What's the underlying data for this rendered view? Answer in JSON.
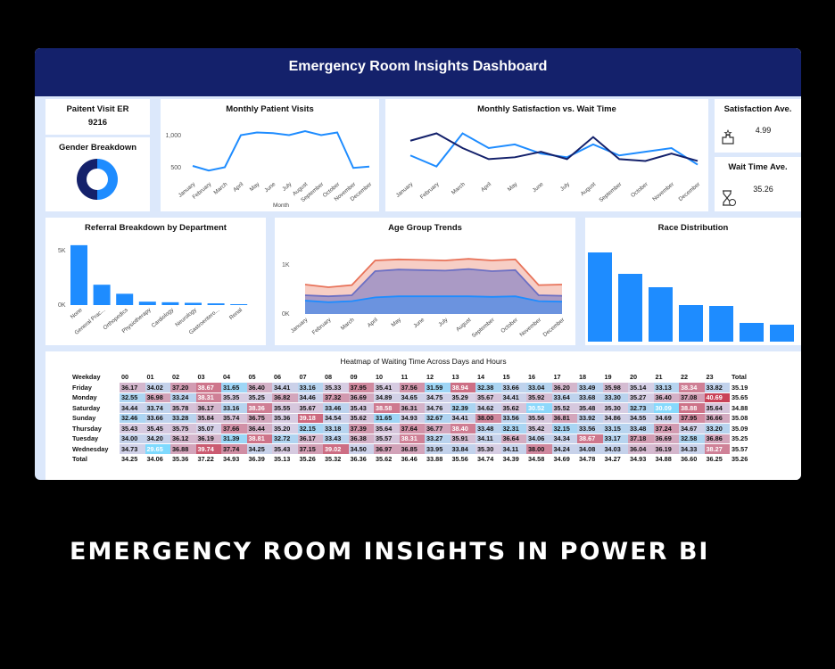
{
  "header": {
    "title": "Emergency Room Insights Dashboard"
  },
  "kpi_visits": {
    "label": "Paitent Visit ER",
    "value": "9216"
  },
  "gender": {
    "title": "Gender Breakdown",
    "colors": [
      "#1e8cff",
      "#14216b"
    ]
  },
  "monthly_visits": {
    "title": "Monthly Patient Visits",
    "xlabel": "Month",
    "yticks": [
      "1,000",
      "500"
    ],
    "categories": [
      "January",
      "February",
      "March",
      "April",
      "May",
      "June",
      "July",
      "August",
      "September",
      "October",
      "November",
      "December"
    ],
    "values": [
      500,
      430,
      480,
      960,
      1000,
      990,
      960,
      1020,
      960,
      1000,
      470,
      490
    ],
    "ylim": [
      300,
      1100
    ],
    "color": "#1e8cff"
  },
  "sat_wait": {
    "title": "Monthly Satisfaction vs. Wait Time",
    "categories": [
      "January",
      "February",
      "March",
      "April",
      "May",
      "June",
      "July",
      "August",
      "September",
      "October",
      "November",
      "December"
    ],
    "series": [
      {
        "values": [
          4.6,
          4.3,
          5.2,
          4.8,
          4.9,
          4.65,
          4.55,
          4.9,
          4.6,
          4.7,
          4.8,
          4.35
        ],
        "color": "#1e8cff"
      },
      {
        "values": [
          5.0,
          5.2,
          4.8,
          4.5,
          4.55,
          4.7,
          4.5,
          5.1,
          4.5,
          4.45,
          4.65,
          4.45
        ],
        "color": "#14216b"
      }
    ],
    "ylim": [
      4.0,
      5.6
    ]
  },
  "kpi_sat": {
    "label": "Satisfaction Ave.",
    "value": "4.99"
  },
  "kpi_wait": {
    "label": "Wait Time Ave.",
    "value": "35.26"
  },
  "referral": {
    "title": "Referral Breakdown by Department",
    "yticks": [
      "5K",
      "0K"
    ],
    "categories": [
      "None",
      "General Prac...",
      "Orthopedics",
      "Physiotherapy",
      "Cardiology",
      "Neurology",
      "Gastroentero...",
      "Renal"
    ],
    "values": [
      5300,
      1800,
      1000,
      300,
      250,
      200,
      150,
      80
    ],
    "ylim": [
      0,
      6000
    ],
    "color": "#1e8cff"
  },
  "age": {
    "title": "Age Group Trends",
    "yticks": [
      "1K",
      "0K"
    ],
    "categories": [
      "January",
      "February",
      "March",
      "April",
      "May",
      "June",
      "July",
      "August",
      "September",
      "October",
      "November",
      "December"
    ],
    "series": [
      {
        "values": [
          250,
          220,
          240,
          310,
          330,
          330,
          330,
          330,
          320,
          330,
          240,
          230
        ],
        "color": "#1e8cff"
      },
      {
        "values": [
          350,
          330,
          350,
          800,
          830,
          820,
          810,
          840,
          800,
          820,
          350,
          340
        ],
        "color": "#6b6fc4"
      },
      {
        "values": [
          550,
          500,
          540,
          1000,
          1020,
          1010,
          1000,
          1030,
          1000,
          1020,
          540,
          550
        ],
        "color": "#e8735a"
      }
    ],
    "ylim": [
      0,
      1300
    ]
  },
  "race": {
    "title": "Race Distribution",
    "values": [
      100,
      76,
      61,
      41,
      40,
      21,
      19
    ],
    "color": "#1e8cff"
  },
  "heatmap": {
    "title": "Heatmap of Waiting Time Across Days and Hours",
    "header": [
      "Weekday",
      "00",
      "01",
      "02",
      "03",
      "04",
      "05",
      "06",
      "07",
      "08",
      "09",
      "10",
      "11",
      "12",
      "13",
      "14",
      "15",
      "16",
      "17",
      "18",
      "19",
      "20",
      "21",
      "22",
      "23",
      "Total"
    ],
    "rows": [
      [
        "Friday",
        "36.17",
        "34.02",
        "37.20",
        "38.67",
        "31.65",
        "36.40",
        "34.41",
        "33.16",
        "35.33",
        "37.95",
        "35.41",
        "37.56",
        "31.59",
        "38.94",
        "32.38",
        "33.66",
        "33.04",
        "36.20",
        "33.49",
        "35.98",
        "35.14",
        "33.13",
        "38.34",
        "33.82",
        "35.19"
      ],
      [
        "Monday",
        "32.55",
        "36.98",
        "33.24",
        "38.31",
        "35.35",
        "35.25",
        "36.82",
        "34.46",
        "37.32",
        "36.69",
        "34.89",
        "34.65",
        "34.75",
        "35.29",
        "35.67",
        "34.41",
        "35.92",
        "33.64",
        "33.68",
        "33.30",
        "35.27",
        "36.40",
        "37.08",
        "40.69",
        "35.65"
      ],
      [
        "Saturday",
        "34.44",
        "33.74",
        "35.78",
        "36.17",
        "33.16",
        "38.36",
        "35.55",
        "35.67",
        "33.46",
        "35.43",
        "38.58",
        "36.31",
        "34.76",
        "32.39",
        "34.62",
        "35.62",
        "30.52",
        "35.52",
        "35.48",
        "35.30",
        "32.73",
        "30.09",
        "38.88",
        "35.64",
        "34.88"
      ],
      [
        "Sunday",
        "32.46",
        "33.66",
        "33.28",
        "35.84",
        "35.74",
        "36.75",
        "35.36",
        "39.18",
        "34.54",
        "35.62",
        "31.65",
        "34.93",
        "32.67",
        "34.41",
        "38.00",
        "33.56",
        "35.56",
        "36.81",
        "33.92",
        "34.86",
        "34.55",
        "34.69",
        "37.95",
        "36.66",
        "35.08"
      ],
      [
        "Thursday",
        "35.43",
        "35.45",
        "35.75",
        "35.07",
        "37.66",
        "36.44",
        "35.20",
        "32.15",
        "33.18",
        "37.39",
        "35.64",
        "37.64",
        "36.77",
        "38.40",
        "33.48",
        "32.31",
        "35.42",
        "32.15",
        "33.56",
        "33.15",
        "33.48",
        "37.24",
        "34.67",
        "33.20",
        "35.09"
      ],
      [
        "Tuesday",
        "34.00",
        "34.20",
        "36.12",
        "36.19",
        "31.39",
        "38.81",
        "32.72",
        "36.17",
        "33.43",
        "36.38",
        "35.57",
        "38.31",
        "33.27",
        "35.91",
        "34.11",
        "36.64",
        "34.06",
        "34.34",
        "38.67",
        "33.17",
        "37.18",
        "36.69",
        "32.58",
        "36.86",
        "35.25"
      ],
      [
        "Wednesday",
        "34.73",
        "29.65",
        "36.88",
        "39.74",
        "37.74",
        "34.25",
        "35.43",
        "37.15",
        "39.02",
        "34.50",
        "36.97",
        "36.85",
        "33.95",
        "33.84",
        "35.30",
        "34.11",
        "38.00",
        "34.24",
        "34.08",
        "34.03",
        "36.04",
        "36.19",
        "34.33",
        "38.27",
        "35.57"
      ],
      [
        "Total",
        "34.25",
        "34.06",
        "35.36",
        "37.22",
        "34.93",
        "36.39",
        "35.13",
        "35.26",
        "35.32",
        "36.36",
        "35.62",
        "36.46",
        "33.88",
        "35.56",
        "34.74",
        "34.39",
        "34.58",
        "34.69",
        "34.78",
        "34.27",
        "34.93",
        "34.88",
        "36.60",
        "36.25",
        "35.26"
      ]
    ]
  },
  "footer": {
    "text": "EMERGENCY ROOM INSIGHTS IN POWER BI"
  }
}
